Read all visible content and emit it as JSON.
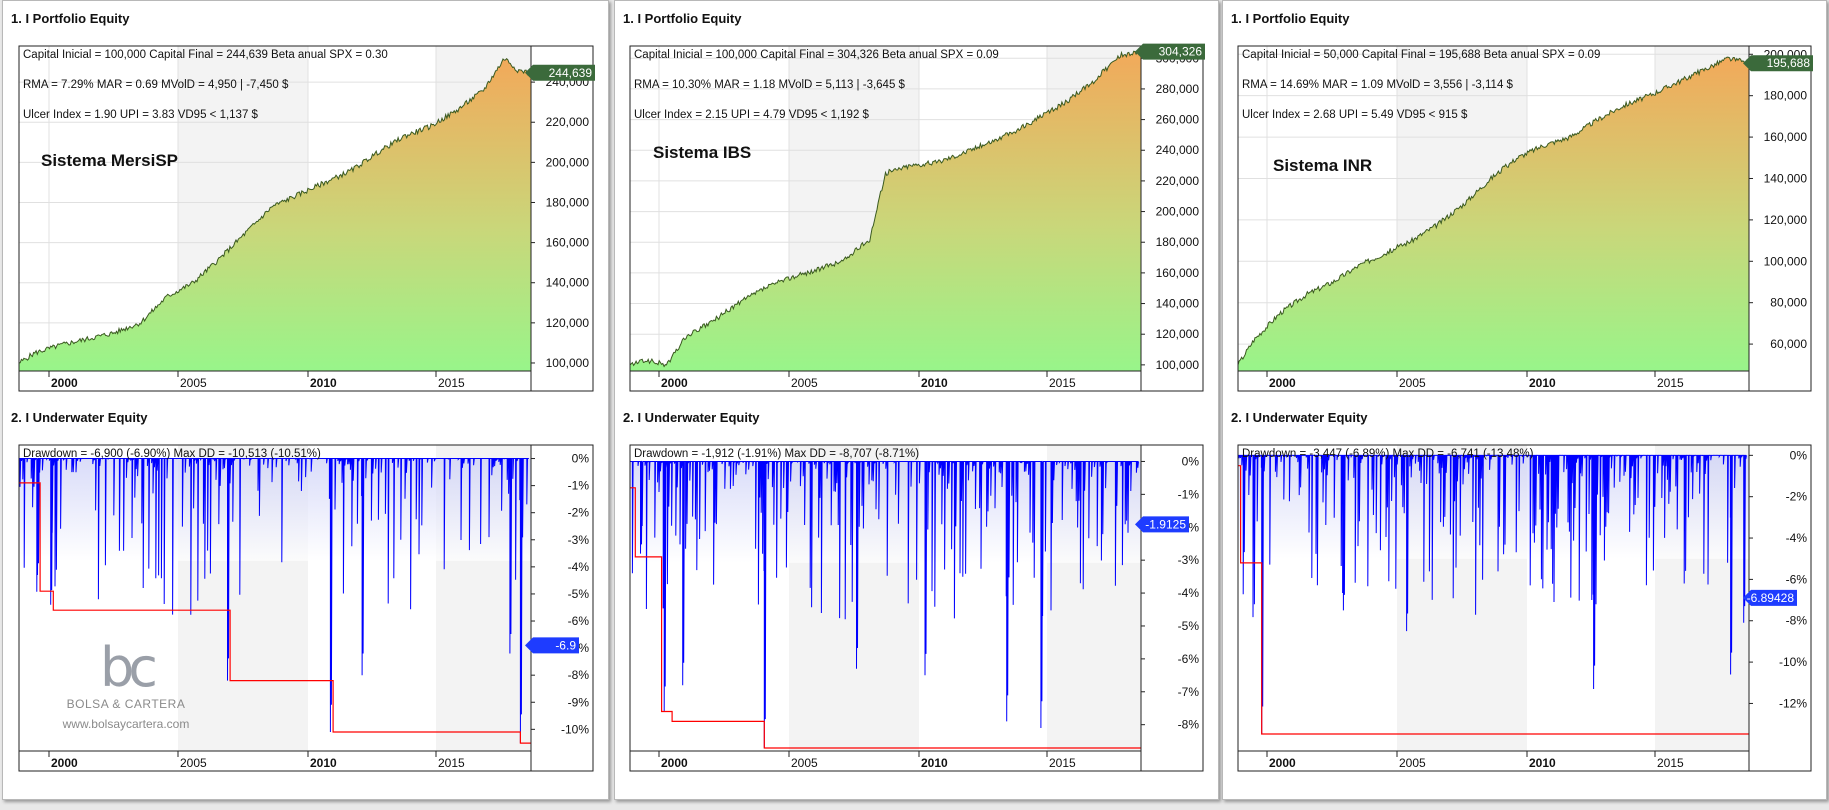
{
  "colors": {
    "equity_top": "#f2a95a",
    "equity_bottom": "#98f58a",
    "equity_line": "#3a5a20",
    "equity_tag": "#3b6a3b",
    "underwater_line": "#0000ff",
    "underwater_fill_top": "#e4e6fb",
    "maxdd_line": "#ff0000",
    "dd_tag": "#1e3cff",
    "grid": "#e0e0e0"
  },
  "panels": [
    {
      "equity_title": "1. I Portfolio Equity",
      "underwater_title": "2. I Underwater Equity",
      "info": [
        "Capital Inicial = 100,000  Capital Final = 244,639  Beta anual SPX = 0.30",
        "RMA = 7.29%  MAR = 0.69  MVolD = 4,950 | -7,450 $",
        "Ulcer Index = 1.90  UPI = 3.83  VD95 < 1,137 $"
      ],
      "system_label": "Sistema MersiSP",
      "equity_value_tag": "244,639",
      "dd_info": "Drawdown = -6,900 (-6.90%)       Max DD = -10,513 (-10.51%)",
      "dd_value_tag": "-6.9"
    },
    {
      "equity_title": "1. I Portfolio Equity",
      "underwater_title": "2. I Underwater Equity",
      "info": [
        "Capital Inicial = 100,000  Capital Final = 304,326  Beta anual SPX = 0.09",
        "RMA = 10.30%  MAR = 1.18  MVolD = 5,113 | -3,645 $",
        "Ulcer Index = 2.15  UPI = 4.79  VD95 < 1,192 $"
      ],
      "system_label": "Sistema IBS",
      "equity_value_tag": "304,326",
      "dd_info": "Drawdown = -1,912 (-1.91%)       Max DD = -8,707 (-8.71%)",
      "dd_value_tag": "-1.9125"
    },
    {
      "equity_title": "1. I Portfolio Equity",
      "underwater_title": "2. I Underwater Equity",
      "info": [
        "Capital Inicial = 50,000  Capital Final = 195,688  Beta anual SPX = 0.09",
        "RMA = 14.69%  MAR = 1.09  MVolD = 3,556 | -3,114 $",
        "Ulcer Index = 2.68  UPI = 5.49  VD95 < 915 $"
      ],
      "system_label": "Sistema INR",
      "equity_value_tag": "195,688",
      "dd_info": "Drawdown = -3,447 (-6.89%)       Max DD = -6,741 (-13.48%)",
      "dd_value_tag": "-6.89428"
    }
  ],
  "watermark": {
    "logo": "bc",
    "name": "BOLSA & CARTERA",
    "url": "www.bolsaycartera.com"
  },
  "chart_data": [
    {
      "type": "area",
      "title": "1. I Portfolio Equity",
      "subtitle": "Sistema MersiSP",
      "x_ticks": [
        "2000",
        "2005",
        "2010",
        "2015"
      ],
      "x_range": [
        1998.9,
        2018.3
      ],
      "y_ticks": [
        100000,
        120000,
        140000,
        160000,
        180000,
        200000,
        220000,
        240000
      ],
      "ylim": [
        96000,
        258000
      ],
      "series": [
        {
          "x": [
            1998.9,
            1999.5,
            2000.5,
            2001.5,
            2002.5,
            2003.5,
            2004.5,
            2005.5,
            2006.5,
            2007.5,
            2008.5,
            2009.5,
            2010.5,
            2011.5,
            2012.5,
            2013.5,
            2014.5,
            2015.5,
            2016.5,
            2017.3,
            2017.8,
            2018.3
          ],
          "values": [
            100000,
            105000,
            109000,
            112000,
            115000,
            120000,
            133000,
            140000,
            152000,
            165000,
            178000,
            184000,
            190000,
            196000,
            205000,
            213000,
            218000,
            226000,
            236000,
            252000,
            246000,
            244639
          ]
        }
      ],
      "last_value": 244639
    },
    {
      "type": "area",
      "title": "2. I Underwater Equity",
      "x_ticks": [
        "2000",
        "2005",
        "2010",
        "2015"
      ],
      "x_range": [
        1998.9,
        2018.3
      ],
      "y_ticks": [
        0,
        -1,
        -2,
        -3,
        -4,
        -5,
        -6,
        -7,
        -8,
        -9,
        -10
      ],
      "ylim": [
        -10.8,
        0.5
      ],
      "series": [
        {
          "name": "Max DD",
          "x": [
            1998.9,
            1999.7,
            1999.7,
            2000.2,
            2000.2,
            2006.9,
            2006.9,
            2010.8,
            2010.8,
            2017.9,
            2017.9,
            2018.3
          ],
          "values": [
            -0.9,
            -0.9,
            -4.9,
            -4.9,
            -5.6,
            -5.6,
            -8.2,
            -8.2,
            -10.1,
            -10.1,
            -10.51,
            -10.51
          ]
        }
      ],
      "last_value": -6.9
    },
    {
      "type": "area",
      "title": "1. I Portfolio Equity",
      "subtitle": "Sistema IBS",
      "x_ticks": [
        "2000",
        "2005",
        "2010",
        "2015"
      ],
      "x_range": [
        1998.9,
        2018.3
      ],
      "y_ticks": [
        100000,
        120000,
        140000,
        160000,
        180000,
        200000,
        220000,
        240000,
        260000,
        280000,
        300000
      ],
      "ylim": [
        96000,
        308000
      ],
      "series": [
        {
          "x": [
            1998.9,
            1999.5,
            2000.3,
            2001.0,
            2002.0,
            2003.0,
            2004.0,
            2005.0,
            2006.0,
            2007.0,
            2008.0,
            2008.6,
            2009.5,
            2010.5,
            2011.5,
            2012.5,
            2013.5,
            2014.5,
            2015.5,
            2016.5,
            2017.5,
            2018.3
          ],
          "values": [
            100000,
            103000,
            100000,
            118000,
            128000,
            140000,
            150000,
            157000,
            162000,
            168000,
            182000,
            225000,
            230000,
            232000,
            238000,
            245000,
            252000,
            262000,
            272000,
            285000,
            302000,
            304326
          ]
        }
      ],
      "last_value": 304326
    },
    {
      "type": "area",
      "title": "2. I Underwater Equity",
      "x_ticks": [
        "2000",
        "2005",
        "2010",
        "2015"
      ],
      "x_range": [
        1998.9,
        2018.3
      ],
      "y_ticks": [
        0,
        -1,
        -2,
        -3,
        -4,
        -5,
        -6,
        -7,
        -8
      ],
      "ylim": [
        -8.8,
        0.5
      ],
      "series": [
        {
          "name": "Max DD",
          "x": [
            1998.9,
            1999.1,
            1999.1,
            2000.1,
            2000.1,
            2000.5,
            2000.5,
            2004.0,
            2004.0,
            2018.3
          ],
          "values": [
            -0.8,
            -0.8,
            -2.9,
            -2.9,
            -7.6,
            -7.6,
            -7.9,
            -7.9,
            -8.71,
            -8.71
          ]
        }
      ],
      "last_value": -1.9125
    },
    {
      "type": "area",
      "title": "1. I Portfolio Equity",
      "subtitle": "Sistema INR",
      "x_ticks": [
        "2000",
        "2005",
        "2010",
        "2015"
      ],
      "x_range": [
        1998.9,
        2018.3
      ],
      "y_ticks": [
        60000,
        80000,
        100000,
        120000,
        140000,
        160000,
        180000,
        200000
      ],
      "ylim": [
        47000,
        204000
      ],
      "series": [
        {
          "x": [
            1998.9,
            1999.5,
            2000.5,
            2001.5,
            2002.5,
            2003.5,
            2004.5,
            2005.5,
            2006.5,
            2007.5,
            2008.5,
            2009.5,
            2010.5,
            2011.5,
            2012.5,
            2013.5,
            2014.5,
            2015.5,
            2016.5,
            2017.5,
            2018.3
          ],
          "values": [
            50000,
            62000,
            75000,
            84000,
            90000,
            98000,
            104000,
            110000,
            118000,
            128000,
            140000,
            150000,
            156000,
            160000,
            168000,
            175000,
            180000,
            186000,
            192000,
            198000,
            195688
          ]
        }
      ],
      "last_value": 195688
    },
    {
      "type": "area",
      "title": "2. I Underwater Equity",
      "x_ticks": [
        "2000",
        "2005",
        "2010",
        "2015"
      ],
      "x_range": [
        1998.9,
        2018.3
      ],
      "y_ticks": [
        0,
        -2,
        -4,
        -6,
        -8,
        -10,
        -12
      ],
      "ylim": [
        -14.3,
        0.5
      ],
      "series": [
        {
          "name": "Max DD",
          "x": [
            1998.9,
            1999.0,
            1999.0,
            1999.8,
            1999.8,
            2018.3
          ],
          "values": [
            -0.5,
            -0.5,
            -5.2,
            -5.2,
            -13.48,
            -13.48
          ]
        }
      ],
      "last_value": -6.89428
    }
  ]
}
